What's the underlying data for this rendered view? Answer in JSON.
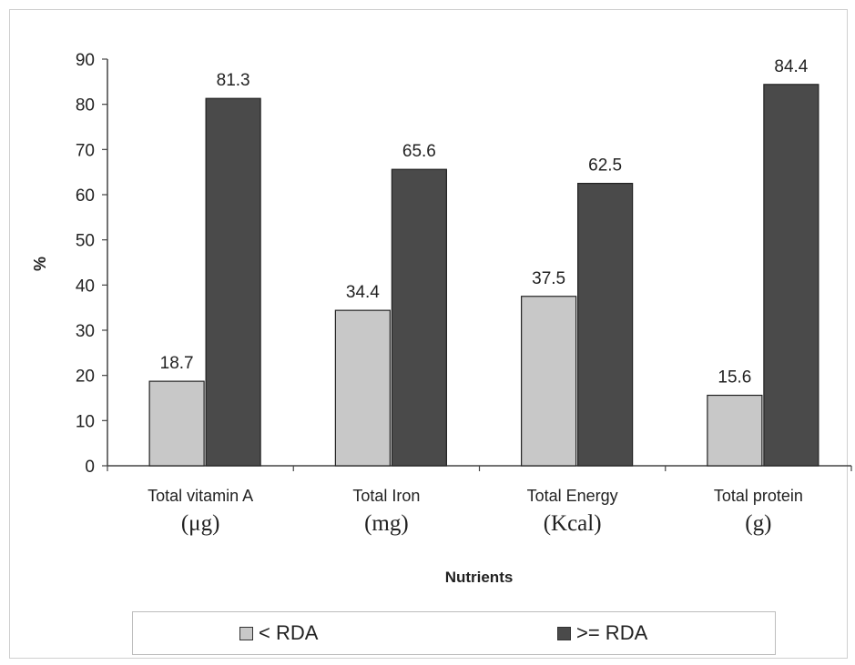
{
  "chart_data": {
    "type": "bar",
    "categories": [
      {
        "line1": "Total vitamin A",
        "line2": "(μg)"
      },
      {
        "line1": "Total Iron",
        "line2": "(mg)"
      },
      {
        "line1": "Total Energy",
        "line2": "(Kcal)"
      },
      {
        "line1": "Total protein",
        "line2": "(g)"
      }
    ],
    "series": [
      {
        "name": "< RDA",
        "color": "#c8c8c8",
        "values": [
          18.7,
          34.4,
          37.5,
          15.6
        ]
      },
      {
        "name": ">= RDA",
        "color": "#4a4a4a",
        "values": [
          81.3,
          65.6,
          62.5,
          84.4
        ]
      }
    ],
    "value_labels": [
      [
        "18.7",
        "34.4",
        "37.5",
        "15.6"
      ],
      [
        "81.3",
        "65.6",
        "62.5",
        "84.4"
      ]
    ],
    "xlabel": "Nutrients",
    "ylabel": "%",
    "ylim": [
      0,
      90
    ],
    "yticks": [
      0,
      10,
      20,
      30,
      40,
      50,
      60,
      70,
      80,
      90
    ],
    "legend_position": "bottom",
    "grid": false
  }
}
